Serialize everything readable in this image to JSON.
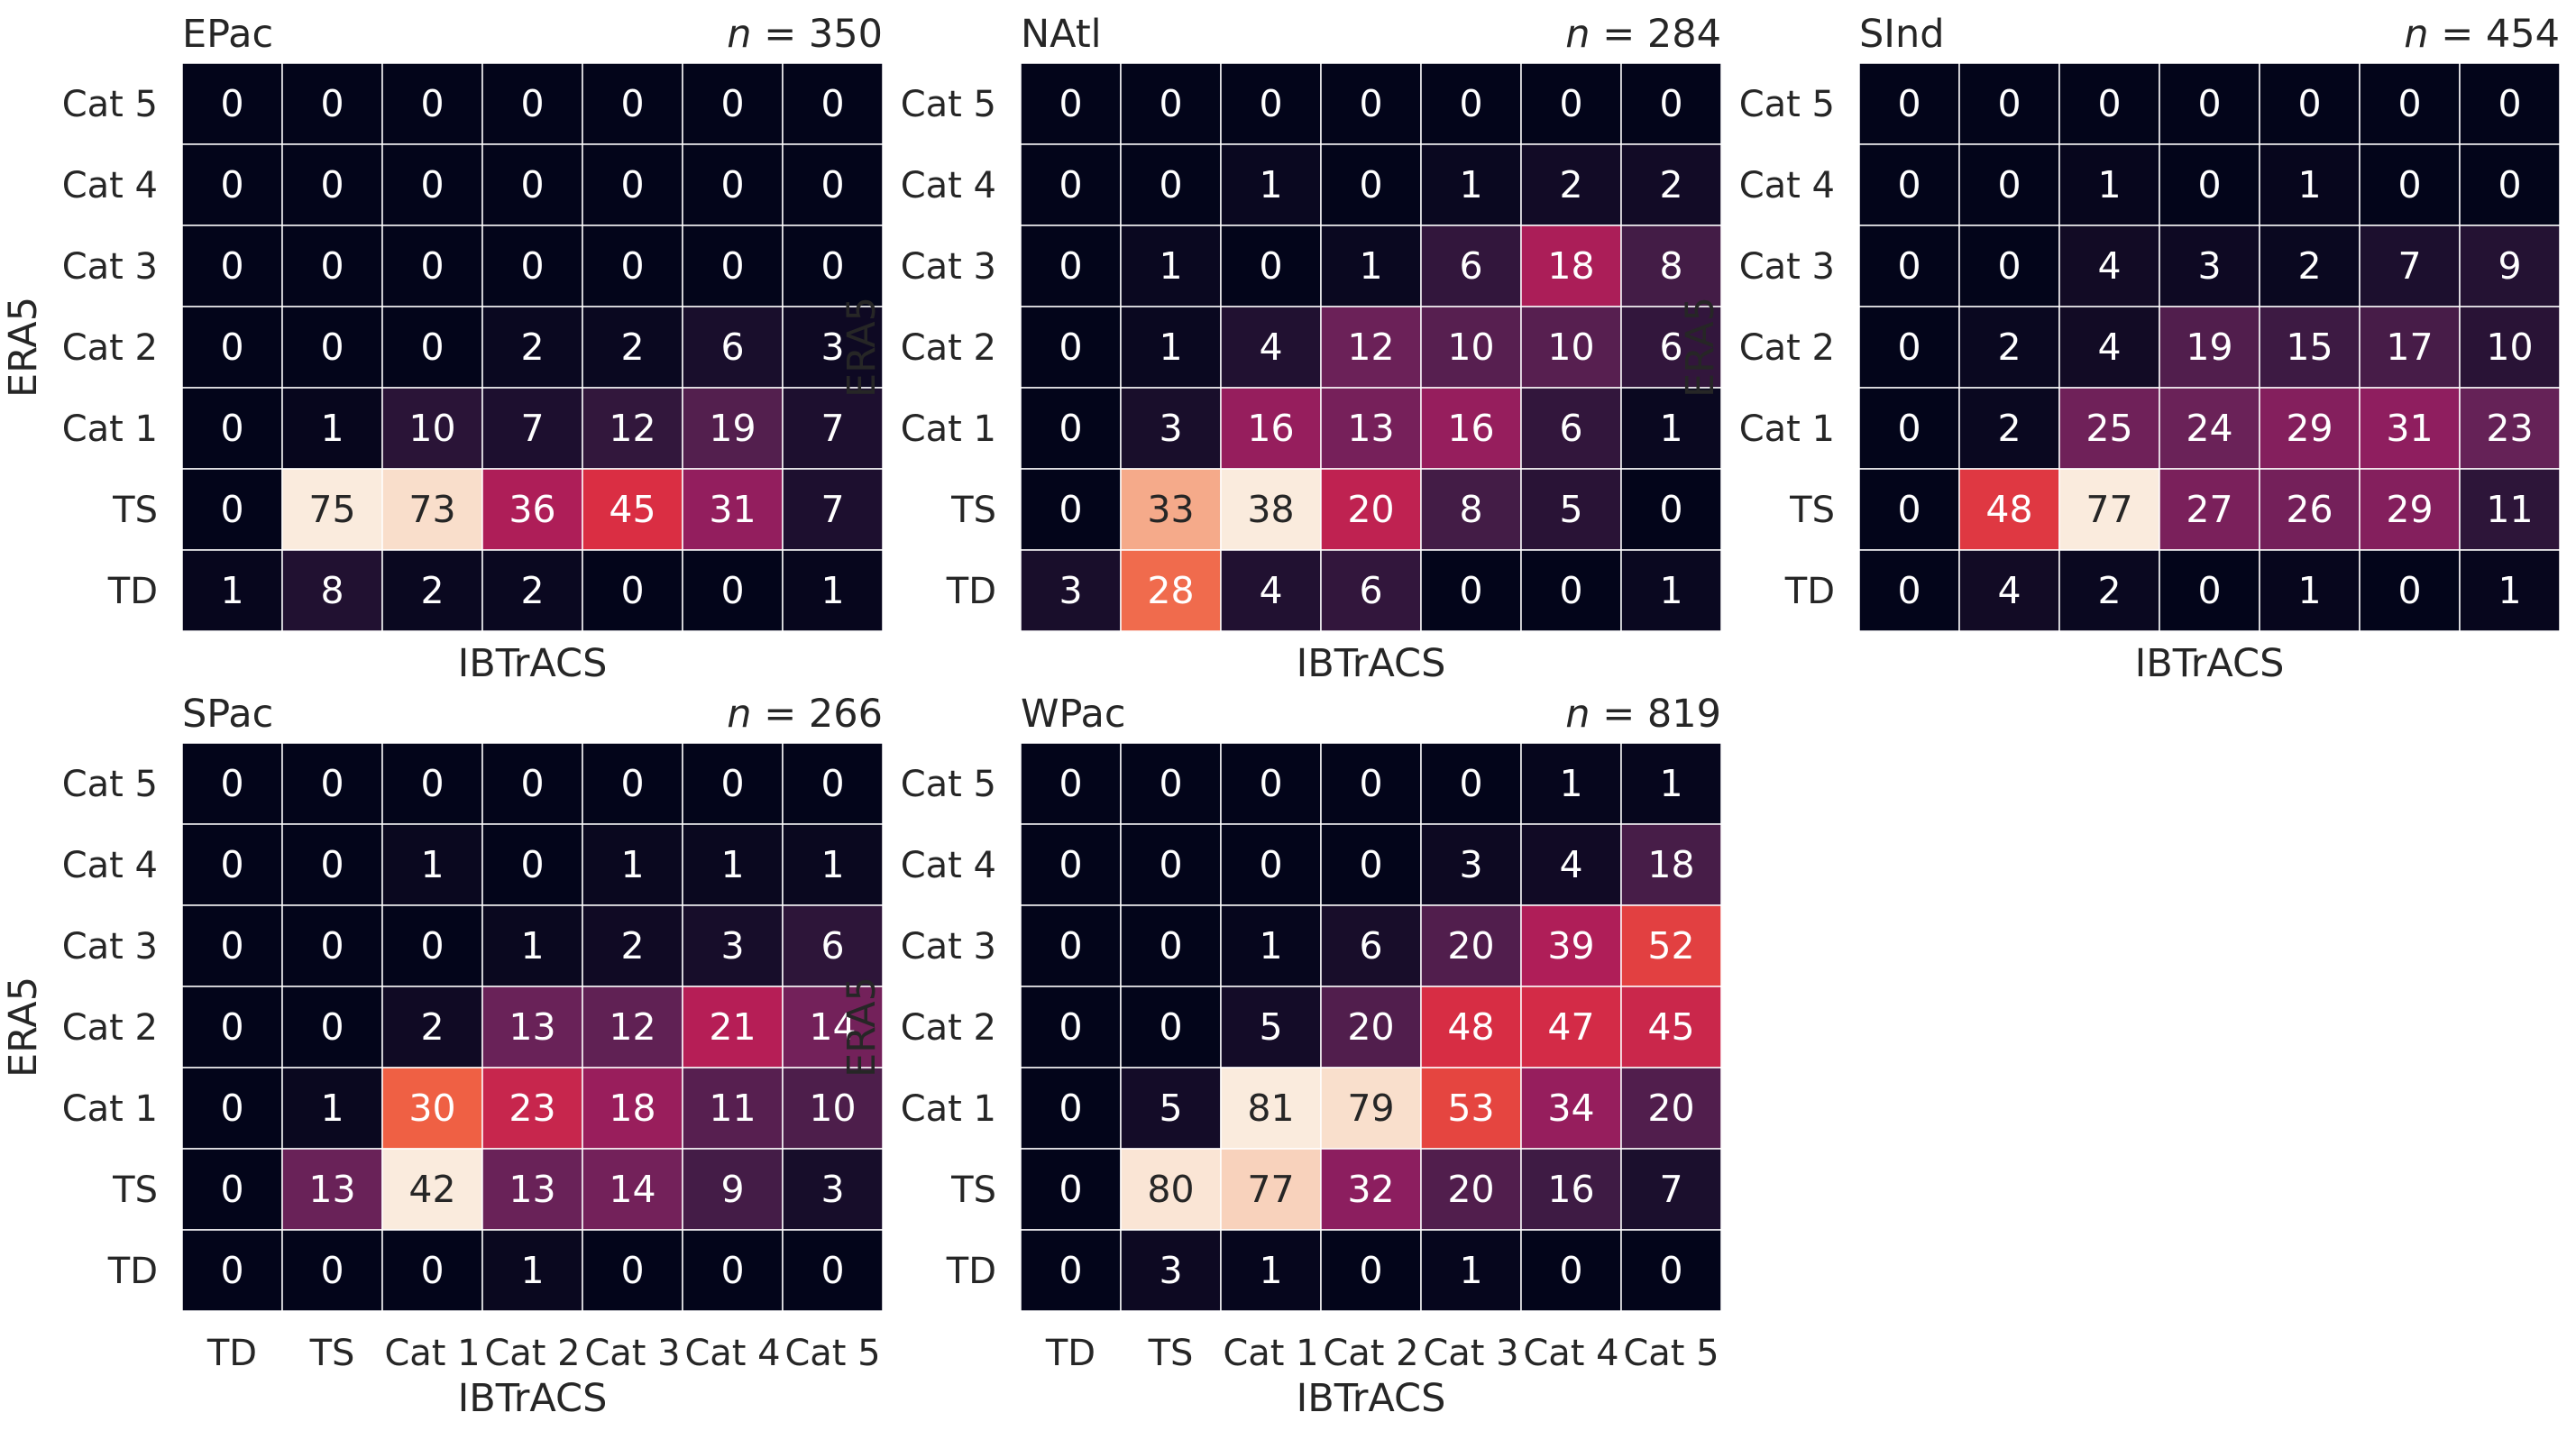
{
  "chart_data": [
    {
      "type": "heatmap",
      "title": "EPac",
      "n_label": "350",
      "xlabel": "IBTrACS",
      "ylabel": "ERA5",
      "x_categories": [
        "TD",
        "TS",
        "Cat 1",
        "Cat 2",
        "Cat 3",
        "Cat 4",
        "Cat 5"
      ],
      "y_categories": [
        "Cat 5",
        "Cat 4",
        "Cat 3",
        "Cat 2",
        "Cat 1",
        "TS",
        "TD"
      ],
      "show_xticks": false,
      "values": [
        [
          0,
          0,
          0,
          0,
          0,
          0,
          0
        ],
        [
          0,
          0,
          0,
          0,
          0,
          0,
          0
        ],
        [
          0,
          0,
          0,
          0,
          0,
          0,
          0
        ],
        [
          0,
          0,
          0,
          2,
          2,
          6,
          3
        ],
        [
          0,
          1,
          10,
          7,
          12,
          19,
          7
        ],
        [
          0,
          75,
          73,
          36,
          45,
          31,
          7
        ],
        [
          1,
          8,
          2,
          2,
          0,
          0,
          1
        ]
      ]
    },
    {
      "type": "heatmap",
      "title": "NAtl",
      "n_label": "284",
      "xlabel": "IBTrACS",
      "ylabel": "ERA5",
      "x_categories": [
        "TD",
        "TS",
        "Cat 1",
        "Cat 2",
        "Cat 3",
        "Cat 4",
        "Cat 5"
      ],
      "y_categories": [
        "Cat 5",
        "Cat 4",
        "Cat 3",
        "Cat 2",
        "Cat 1",
        "TS",
        "TD"
      ],
      "show_xticks": false,
      "values": [
        [
          0,
          0,
          0,
          0,
          0,
          0,
          0
        ],
        [
          0,
          0,
          1,
          0,
          1,
          2,
          2
        ],
        [
          0,
          1,
          0,
          1,
          6,
          18,
          8
        ],
        [
          0,
          1,
          4,
          12,
          10,
          10,
          6
        ],
        [
          0,
          3,
          16,
          13,
          16,
          6,
          1
        ],
        [
          0,
          33,
          38,
          20,
          8,
          5,
          0
        ],
        [
          3,
          28,
          4,
          6,
          0,
          0,
          1
        ]
      ]
    },
    {
      "type": "heatmap",
      "title": "SInd",
      "n_label": "454",
      "xlabel": "IBTrACS",
      "ylabel": "ERA5",
      "x_categories": [
        "TD",
        "TS",
        "Cat 1",
        "Cat 2",
        "Cat 3",
        "Cat 4",
        "Cat 5"
      ],
      "y_categories": [
        "Cat 5",
        "Cat 4",
        "Cat 3",
        "Cat 2",
        "Cat 1",
        "TS",
        "TD"
      ],
      "show_xticks": false,
      "values": [
        [
          0,
          0,
          0,
          0,
          0,
          0,
          0
        ],
        [
          0,
          0,
          1,
          0,
          1,
          0,
          0
        ],
        [
          0,
          0,
          4,
          3,
          2,
          7,
          9
        ],
        [
          0,
          2,
          4,
          19,
          15,
          17,
          10
        ],
        [
          0,
          2,
          25,
          24,
          29,
          31,
          23
        ],
        [
          0,
          48,
          77,
          27,
          26,
          29,
          11
        ],
        [
          0,
          4,
          2,
          0,
          1,
          0,
          1
        ]
      ]
    },
    {
      "type": "heatmap",
      "title": "SPac",
      "n_label": "266",
      "xlabel": "IBTrACS",
      "ylabel": "ERA5",
      "x_categories": [
        "TD",
        "TS",
        "Cat 1",
        "Cat 2",
        "Cat 3",
        "Cat 4",
        "Cat 5"
      ],
      "y_categories": [
        "Cat 5",
        "Cat 4",
        "Cat 3",
        "Cat 2",
        "Cat 1",
        "TS",
        "TD"
      ],
      "show_xticks": true,
      "values": [
        [
          0,
          0,
          0,
          0,
          0,
          0,
          0
        ],
        [
          0,
          0,
          1,
          0,
          1,
          1,
          1
        ],
        [
          0,
          0,
          0,
          1,
          2,
          3,
          6
        ],
        [
          0,
          0,
          2,
          13,
          12,
          21,
          14
        ],
        [
          0,
          1,
          30,
          23,
          18,
          11,
          10
        ],
        [
          0,
          13,
          42,
          13,
          14,
          9,
          3
        ],
        [
          0,
          0,
          0,
          1,
          0,
          0,
          0
        ]
      ]
    },
    {
      "type": "heatmap",
      "title": "WPac",
      "n_label": "819",
      "xlabel": "IBTrACS",
      "ylabel": "ERA5",
      "x_categories": [
        "TD",
        "TS",
        "Cat 1",
        "Cat 2",
        "Cat 3",
        "Cat 4",
        "Cat 5"
      ],
      "y_categories": [
        "Cat 5",
        "Cat 4",
        "Cat 3",
        "Cat 2",
        "Cat 1",
        "TS",
        "TD"
      ],
      "show_xticks": true,
      "values": [
        [
          0,
          0,
          0,
          0,
          0,
          1,
          1
        ],
        [
          0,
          0,
          0,
          0,
          3,
          4,
          18
        ],
        [
          0,
          0,
          1,
          6,
          20,
          39,
          52
        ],
        [
          0,
          0,
          5,
          20,
          48,
          47,
          45
        ],
        [
          0,
          5,
          81,
          79,
          53,
          34,
          20
        ],
        [
          0,
          80,
          77,
          32,
          20,
          16,
          7
        ],
        [
          0,
          3,
          1,
          0,
          1,
          0,
          0
        ]
      ]
    }
  ]
}
